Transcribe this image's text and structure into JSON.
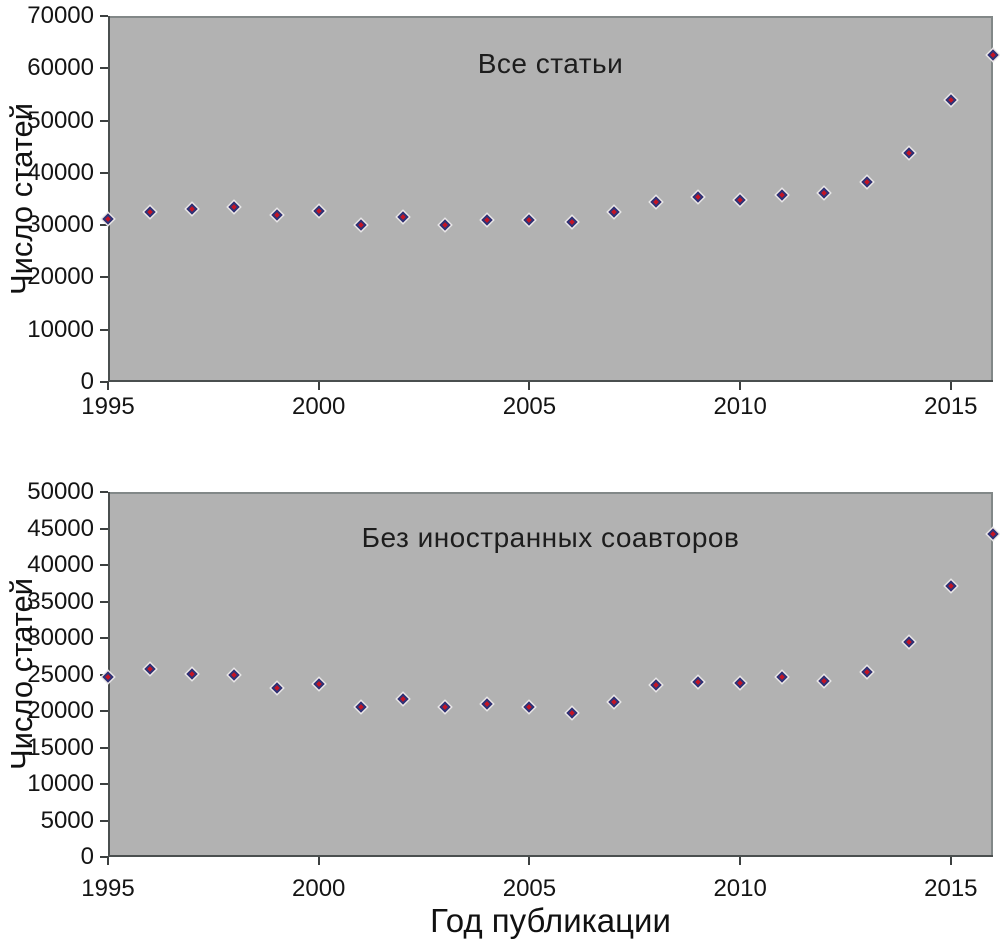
{
  "figure": {
    "background": "#ffffff",
    "plot_background": "#b2b2b2",
    "plot_border": "#828888",
    "axis_color": "#4a4f4f",
    "text_color": "#161616",
    "marker": {
      "shape": "diamond",
      "fill": "#c41425",
      "border": "#2b3479",
      "halo": "#e9e9e9"
    }
  },
  "chart_data": [
    {
      "type": "scatter",
      "title": "Все статьи",
      "ylabel": "Число статей",
      "xlabel": "",
      "legend": "none",
      "grid": false,
      "xlim": [
        1995,
        2016
      ],
      "ylim": [
        0,
        70000
      ],
      "yticks": [
        0,
        10000,
        20000,
        30000,
        40000,
        50000,
        60000,
        70000
      ],
      "xticks": [
        1995,
        2000,
        2005,
        2010,
        2015
      ],
      "x": [
        1995,
        1996,
        1997,
        1998,
        1999,
        2000,
        2001,
        2002,
        2003,
        2004,
        2005,
        2006,
        2007,
        2008,
        2009,
        2010,
        2011,
        2012,
        2013,
        2014,
        2015,
        2016
      ],
      "values": [
        31100,
        32600,
        33100,
        33400,
        32000,
        32700,
        30000,
        31500,
        30000,
        30900,
        31000,
        30600,
        32500,
        34500,
        35300,
        34900,
        35800,
        36200,
        38300,
        43800,
        53900,
        62600
      ]
    },
    {
      "type": "scatter",
      "title": "Без иностранных соавторов",
      "ylabel": "Число статей",
      "xlabel": "Год публикации",
      "legend": "none",
      "grid": false,
      "xlim": [
        1995,
        2016
      ],
      "ylim": [
        0,
        50000
      ],
      "yticks": [
        0,
        5000,
        10000,
        15000,
        20000,
        25000,
        30000,
        35000,
        40000,
        45000,
        50000
      ],
      "xticks": [
        1995,
        2000,
        2005,
        2010,
        2015
      ],
      "x": [
        1995,
        1996,
        1997,
        1998,
        1999,
        2000,
        2001,
        2002,
        2003,
        2004,
        2005,
        2006,
        2007,
        2008,
        2009,
        2010,
        2011,
        2012,
        2013,
        2014,
        2015,
        2016
      ],
      "values": [
        24600,
        25800,
        25100,
        24900,
        23200,
        23700,
        20600,
        21700,
        20600,
        21000,
        20600,
        19700,
        21200,
        23500,
        24000,
        23800,
        24600,
        24100,
        25400,
        29400,
        37100,
        44300
      ]
    }
  ]
}
